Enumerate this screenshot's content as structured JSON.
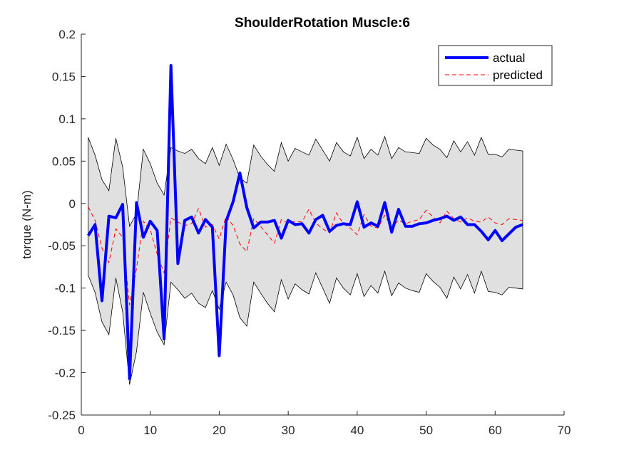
{
  "chart_data": {
    "type": "line",
    "title": "ShoulderRotation Muscle:6",
    "xlabel": "",
    "ylabel": "torque (N-m)",
    "xlim": [
      0,
      70
    ],
    "ylim": [
      -0.25,
      0.2
    ],
    "xticks": [
      "0",
      "10",
      "20",
      "30",
      "40",
      "50",
      "60",
      "70"
    ],
    "yticks": [
      "-0.25",
      "-0.2",
      "-0.15",
      "-0.1",
      "-0.05",
      "0",
      "0.05",
      "0.1",
      "0.15",
      "0.2"
    ],
    "grid": false,
    "legend_position": "top-right",
    "x": [
      1,
      2,
      3,
      4,
      5,
      6,
      7,
      8,
      9,
      10,
      11,
      12,
      13,
      14,
      15,
      16,
      17,
      18,
      19,
      20,
      21,
      22,
      23,
      24,
      25,
      26,
      27,
      28,
      29,
      30,
      31,
      32,
      33,
      34,
      35,
      36,
      37,
      38,
      39,
      40,
      41,
      42,
      43,
      44,
      45,
      46,
      47,
      48,
      49,
      50,
      51,
      52,
      53,
      54,
      55,
      56,
      57,
      58,
      59,
      60,
      61,
      62,
      63,
      64
    ],
    "band": {
      "upper": [
        0.078,
        0.057,
        0.028,
        0.015,
        0.077,
        0.043,
        -0.027,
        -0.012,
        0.064,
        0.047,
        0.024,
        0.01,
        0.066,
        0.062,
        0.059,
        0.064,
        0.053,
        0.047,
        0.066,
        0.045,
        0.07,
        0.052,
        0.03,
        0.024,
        0.069,
        0.056,
        0.046,
        0.038,
        0.072,
        0.05,
        0.065,
        0.061,
        0.057,
        0.076,
        0.063,
        0.05,
        0.072,
        0.061,
        0.056,
        0.078,
        0.053,
        0.064,
        0.057,
        0.079,
        0.053,
        0.066,
        0.061,
        0.06,
        0.059,
        0.077,
        0.069,
        0.064,
        0.054,
        0.074,
        0.061,
        0.073,
        0.057,
        0.078,
        0.058,
        0.058,
        0.055,
        0.064,
        0.063,
        0.062
      ],
      "lower": [
        -0.085,
        -0.105,
        -0.14,
        -0.155,
        -0.088,
        -0.128,
        -0.214,
        -0.175,
        -0.105,
        -0.13,
        -0.152,
        -0.167,
        -0.093,
        -0.102,
        -0.112,
        -0.106,
        -0.118,
        -0.123,
        -0.103,
        -0.125,
        -0.093,
        -0.108,
        -0.135,
        -0.145,
        -0.093,
        -0.106,
        -0.118,
        -0.128,
        -0.09,
        -0.113,
        -0.095,
        -0.102,
        -0.107,
        -0.082,
        -0.1,
        -0.118,
        -0.088,
        -0.1,
        -0.108,
        -0.083,
        -0.11,
        -0.097,
        -0.106,
        -0.08,
        -0.109,
        -0.094,
        -0.1,
        -0.103,
        -0.105,
        -0.083,
        -0.092,
        -0.099,
        -0.112,
        -0.087,
        -0.101,
        -0.084,
        -0.106,
        -0.08,
        -0.104,
        -0.105,
        -0.108,
        -0.099,
        -0.1,
        -0.101
      ]
    },
    "series": [
      {
        "name": "actual",
        "color": "#0000ff",
        "style": "solid",
        "values": [
          -0.038,
          -0.025,
          -0.115,
          -0.015,
          -0.017,
          -0.001,
          -0.207,
          0.001,
          -0.04,
          -0.021,
          -0.032,
          -0.16,
          0.163,
          -0.071,
          -0.02,
          -0.016,
          -0.035,
          -0.019,
          -0.028,
          -0.18,
          -0.021,
          0.002,
          0.036,
          -0.005,
          -0.029,
          -0.022,
          -0.022,
          -0.02,
          -0.041,
          -0.02,
          -0.025,
          -0.024,
          -0.035,
          -0.019,
          -0.014,
          -0.033,
          -0.026,
          -0.024,
          -0.025,
          0.002,
          -0.028,
          -0.023,
          -0.027,
          0.001,
          -0.034,
          -0.007,
          -0.027,
          -0.027,
          -0.024,
          -0.023,
          -0.02,
          -0.018,
          -0.015,
          -0.02,
          -0.016,
          -0.025,
          -0.025,
          -0.033,
          -0.043,
          -0.032,
          -0.044,
          -0.036,
          -0.028,
          -0.025
        ]
      },
      {
        "name": "predicted",
        "color": "#ff0000",
        "style": "dashed",
        "values": [
          -0.004,
          -0.02,
          -0.053,
          -0.07,
          -0.03,
          -0.04,
          -0.12,
          -0.077,
          -0.021,
          -0.031,
          -0.06,
          -0.082,
          -0.017,
          -0.022,
          -0.026,
          -0.024,
          -0.006,
          -0.028,
          -0.025,
          -0.042,
          -0.015,
          -0.026,
          -0.048,
          -0.057,
          -0.018,
          -0.027,
          -0.037,
          -0.047,
          -0.019,
          -0.023,
          -0.021,
          -0.022,
          -0.007,
          -0.023,
          -0.03,
          -0.035,
          -0.011,
          -0.024,
          -0.029,
          -0.037,
          -0.013,
          -0.027,
          -0.029,
          -0.014,
          -0.028,
          -0.02,
          -0.024,
          -0.021,
          -0.019,
          -0.008,
          -0.016,
          -0.023,
          -0.009,
          -0.018,
          -0.022,
          -0.017,
          -0.021,
          -0.022,
          -0.016,
          -0.023,
          -0.025,
          -0.018,
          -0.019,
          -0.02
        ]
      }
    ],
    "band_color": "#e0e0e0",
    "band_edge_color": "#000000"
  }
}
